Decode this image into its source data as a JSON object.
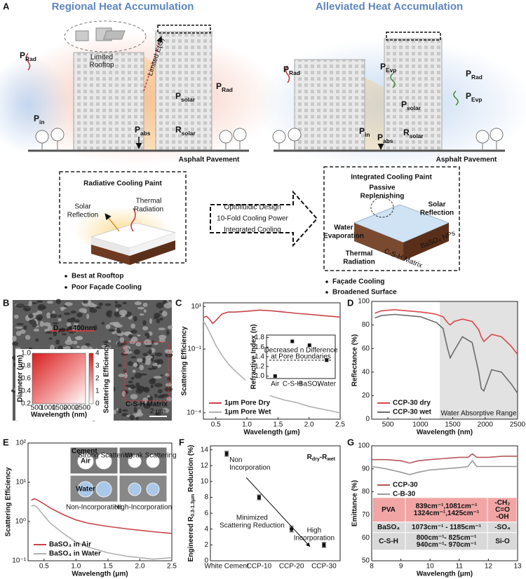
{
  "panel_a": {
    "label": "A",
    "titles": [
      "Regional Heat Accumulation",
      "Alleviated Heat Accumulation"
    ],
    "limited_rooftop": [
      "Limited",
      "Rooftop"
    ],
    "limited_e": "Limited E(Θ)",
    "left_fluxes": [
      [
        {
          "text": "P"
        },
        {
          "text": "Rad",
          "sub": true
        }
      ],
      [
        {
          "text": "P"
        },
        {
          "text": "solar",
          "sub": true
        }
      ],
      [
        {
          "text": "P"
        },
        {
          "text": "Rad",
          "sub": true
        }
      ],
      [
        {
          "text": "P"
        },
        {
          "text": "in",
          "sub": true
        }
      ],
      [
        {
          "text": "R"
        },
        {
          "text": "solar",
          "sub": true
        }
      ],
      [
        {
          "text": "P"
        },
        {
          "text": "abs",
          "sub": true
        }
      ]
    ],
    "right_fluxes": [
      [
        {
          "text": "P"
        },
        {
          "text": "Rad",
          "sub": true
        }
      ],
      [
        {
          "text": "P"
        },
        {
          "text": "Evp",
          "sub": true
        }
      ],
      [
        {
          "text": "P"
        },
        {
          "text": "Rad",
          "sub": true
        }
      ],
      [
        {
          "text": "P"
        },
        {
          "text": "Evp",
          "sub": true
        }
      ],
      [
        {
          "text": "P"
        },
        {
          "text": "solar",
          "sub": true
        }
      ],
      [
        {
          "text": "P"
        },
        {
          "text": "in",
          "sub": true
        }
      ],
      [
        {
          "text": "P"
        },
        {
          "text": "abs",
          "sub": true
        }
      ],
      [
        {
          "text": "R"
        },
        {
          "text": "solar",
          "sub": true
        }
      ]
    ],
    "pavement": [
      "Asphalt Pavement",
      "Asphalt Pavement"
    ],
    "left_box": {
      "title": "Radiative Cooling Paint",
      "solar": [
        "Solar",
        "Reflection"
      ],
      "thermal": [
        "Thermal",
        "Radiation"
      ],
      "bullets": [
        "Best at Rooftop",
        "Poor Façade Cooling"
      ]
    },
    "arrow_text": [
      "Optofluidic Design",
      "10-Fold Cooling Power",
      "Integrated Cooling"
    ],
    "right_box": {
      "title": "Integrated Cooling Paint",
      "replenish": [
        "Passive",
        "Replenishing"
      ],
      "solar": [
        "Solar",
        "Reflection"
      ],
      "evaporation": [
        "Water",
        "Evaporation"
      ],
      "thermal": [
        "Thermal",
        "Radiation"
      ],
      "matrix": "C-S-H Matrix",
      "nps": "BaSO₄ NPs",
      "bullets": [
        "Façade Cooling",
        "Broadened Surface"
      ]
    }
  },
  "panel_b": {
    "label": "B",
    "pore_label": [
      {
        "text": "D"
      },
      {
        "text": "pore",
        "sub": true
      },
      {
        "text": "≈400nm"
      }
    ],
    "matrix_label": "C-S-H Matrix",
    "scale_bar": "2 μm",
    "inset": {
      "x_label": "Wavelength (nm)",
      "y_label": "Diameter (μm)",
      "colorbar_label": "Scattering Efficiency",
      "x_ticks": [
        "500",
        "1000",
        "1500",
        "2000",
        "2500"
      ],
      "y_ticks": [
        "0.2",
        "0.4",
        "0.6",
        "0.8",
        "1.0"
      ],
      "colorbar_ticks": [
        "0",
        "1",
        "2",
        "3",
        "4"
      ]
    }
  },
  "chart_data": [
    {
      "type": "line",
      "panel_label": "C",
      "x_label": "Wavelength (μm)",
      "y_label": "Scattering Efficiency",
      "y_scale": "log",
      "xlim": [
        0.3,
        2.5
      ],
      "xticks": [
        0.5,
        {
          "value": 1,
          "label": "1.0"
        },
        1.5,
        {
          "value": 2,
          "label": "2.0"
        },
        2.5
      ],
      "ylim": [
        5e-05,
        15
      ],
      "yticks": [
        {
          "value": 0.0001,
          "label": "10⁻⁴"
        },
        {
          "value": 0.1,
          "label": "10⁻¹"
        },
        {
          "value": 10,
          "label": "10¹"
        }
      ],
      "legend": "lower left",
      "x": [
        0.3,
        0.35,
        0.4,
        0.45,
        0.5,
        0.6,
        0.7,
        0.8,
        1.0,
        1.2,
        1.4,
        1.6,
        1.8,
        2.0,
        2.2,
        2.5
      ],
      "series": [
        {
          "name": "1μm Pore Dry",
          "color": "#c9444a",
          "values": [
            3,
            3.5,
            2.5,
            1.6,
            2.2,
            4.5,
            5.5,
            5.5,
            6,
            6.8,
            6.3,
            5.5,
            4.8,
            4.3,
            3.8,
            3.2
          ]
        },
        {
          "name": "1μm Pore Wet",
          "color": "#b0b0b0",
          "values": [
            2,
            1.2,
            0.6,
            0.3,
            0.15,
            0.05,
            0.02,
            0.01,
            0.003,
            0.0012,
            0.0006,
            0.0004,
            0.0003,
            0.0002,
            0.00015,
            0.0001
          ]
        }
      ]
    },
    {
      "type": "scatter",
      "y_label": "Refractive Index (n)",
      "categories": [
        "Air",
        "C-S-H",
        "BaSO₄",
        "Water"
      ],
      "values": [
        1,
        1.72,
        1.64,
        1.33
      ],
      "color": "#111111",
      "ylim": [
        0.95,
        1.85
      ],
      "yticks": [
        {
          "value": 1,
          "label": "1.0"
        },
        1.2,
        1.4,
        1.6,
        1.8
      ],
      "reference_line": 1.33,
      "annotation": [
        "Decreased n Difference",
        "at Pore Boundaries"
      ]
    },
    {
      "type": "line",
      "panel_label": "D",
      "x_label": "Wavelength (nm)",
      "y_label": "Reflectance (%)",
      "xlim": [
        250,
        2500
      ],
      "xticks": [
        500,
        1000,
        1500,
        2000,
        2500
      ],
      "ylim": [
        0,
        100
      ],
      "yticks": [
        0,
        20,
        40,
        60,
        80,
        100
      ],
      "legend": "lower left",
      "shaded_range": [
        1300,
        2500
      ],
      "shaded_label": "Water Absorptive Range",
      "x": [
        300,
        400,
        600,
        800,
        1000,
        1150,
        1250,
        1350,
        1420,
        1460,
        1520,
        1650,
        1800,
        1900,
        1940,
        1980,
        2100,
        2250,
        2400,
        2500
      ],
      "series": [
        {
          "name": "CCP-30 dry",
          "color": "#d9474c",
          "values": [
            90,
            92,
            93,
            92,
            91,
            90,
            89,
            87,
            82,
            80,
            83,
            85,
            83,
            76,
            70,
            66,
            72,
            70,
            62,
            55
          ]
        },
        {
          "name": "CCP-30 wet",
          "color": "#6b6b6b",
          "values": [
            86,
            88,
            89,
            88,
            87,
            84,
            82,
            77,
            60,
            52,
            58,
            70,
            65,
            40,
            26,
            24,
            42,
            40,
            30,
            22
          ]
        }
      ]
    },
    {
      "type": "line",
      "panel_label": "E",
      "x_label": "Wavelength (μm)",
      "y_label": "Scattering Efficiency",
      "y_scale": "log",
      "xlim": [
        0.25,
        2.5
      ],
      "xticks": [
        0.5,
        {
          "value": 1,
          "label": "1.0"
        },
        1.5,
        {
          "value": 2,
          "label": "2.0"
        },
        2.5
      ],
      "ylim": [
        0.1,
        100
      ],
      "yticks": [
        {
          "value": 0.1,
          "label": "10⁻¹"
        },
        {
          "value": 1,
          "label": "10⁰"
        },
        {
          "value": 10,
          "label": "10¹"
        },
        {
          "value": 100,
          "label": "10²"
        }
      ],
      "legend": "lower left",
      "x": [
        0.3,
        0.35,
        0.4,
        0.5,
        0.6,
        0.8,
        1.0,
        1.2,
        1.5,
        1.8,
        2.0,
        2.2,
        2.5
      ],
      "series": [
        {
          "name": "BaSO₄ in Air",
          "color": "#c9444a",
          "values": [
            3.5,
            3.8,
            3.5,
            2.8,
            2.2,
            1.5,
            1.1,
            0.9,
            0.75,
            0.65,
            0.6,
            0.55,
            0.5
          ]
        },
        {
          "name": "BaSO₄ in Water",
          "color": "#b0b0b0",
          "values": [
            2.5,
            2.6,
            2.2,
            1.4,
            0.9,
            0.5,
            0.3,
            0.22,
            0.16,
            0.13,
            0.12,
            0.11,
            0.12
          ]
        }
      ],
      "inset": {
        "cement": "Cement",
        "air": "Air",
        "water": "Water",
        "strong": "Strong Scattering",
        "weak": "Weak Scattering",
        "non": "Non-Incorporation",
        "high": "High-Incorporation"
      }
    },
    {
      "type": "scatter",
      "panel_label": "F",
      "title": [
        {
          "text": "R"
        },
        {
          "text": "dry",
          "sub": true
        },
        {
          "text": "-R"
        },
        {
          "text": "wet",
          "sub": true
        }
      ],
      "y_label": [
        {
          "text": "Engineered R"
        },
        {
          "text": "0.3-1.3μm",
          "sub": true
        },
        {
          "text": " Reduction (%)"
        }
      ],
      "categories": [
        "White Cement",
        "CCP-10",
        "CCP-20",
        "CCP-30"
      ],
      "values": [
        13.5,
        8,
        4,
        2
      ],
      "errors": [
        0.3,
        0.3,
        0.35,
        0.3
      ],
      "color": "#111111",
      "ylim": [
        0,
        14.5
      ],
      "yticks": [
        0,
        2,
        4,
        6,
        8,
        10,
        12,
        14
      ],
      "annotations": {
        "non": [
          "Non",
          "Incorporation"
        ],
        "min": [
          "Minimized",
          "Scattering Reduction"
        ],
        "high": [
          "High",
          "Incorporation"
        ]
      }
    },
    {
      "type": "line",
      "panel_label": "G",
      "x_label": "Wavelength (μm)",
      "y_label": "Emittance (%)",
      "xlim": [
        8,
        13
      ],
      "xticks": [
        8,
        9,
        10,
        11,
        12,
        13
      ],
      "ylim": [
        50,
        100
      ],
      "yticks": [
        50,
        60,
        70,
        80,
        90,
        100
      ],
      "legend": "center left",
      "x": [
        8,
        8.5,
        9,
        9.3,
        9.6,
        10,
        10.5,
        11,
        11.3,
        11.45,
        11.6,
        12,
        12.5,
        13
      ],
      "series": [
        {
          "name": "CCP-30",
          "color": "#b5575b",
          "values": [
            94,
            94,
            93.5,
            92.5,
            93.5,
            94,
            94.5,
            95,
            95,
            96.5,
            95,
            95,
            95.5,
            95.5
          ]
        },
        {
          "name": "C-B-30",
          "color": "#9a9a9a",
          "values": [
            91,
            90,
            88.5,
            87.5,
            88.5,
            89.5,
            90,
            90.5,
            91,
            93.5,
            91,
            91,
            91,
            91
          ]
        }
      ],
      "table": {
        "rows": [
          [
            [
              "PVA"
            ],
            [
              "839cm⁻¹,1081cm⁻¹",
              "1324cm⁻¹,1425cm⁻¹"
            ],
            [
              "-CH₂",
              "C=O",
              "-OH"
            ]
          ],
          [
            [
              "BaSO₄"
            ],
            [
              "1073cm⁻¹ - 1185cm⁻¹"
            ],
            [
              "-SO₄"
            ]
          ],
          [
            [
              "C-S-H"
            ],
            [
              "800cm⁻¹- 825cm⁻¹",
              "940cm⁻¹- 970cm⁻¹"
            ],
            [
              "Si-O"
            ]
          ]
        ]
      }
    }
  ]
}
